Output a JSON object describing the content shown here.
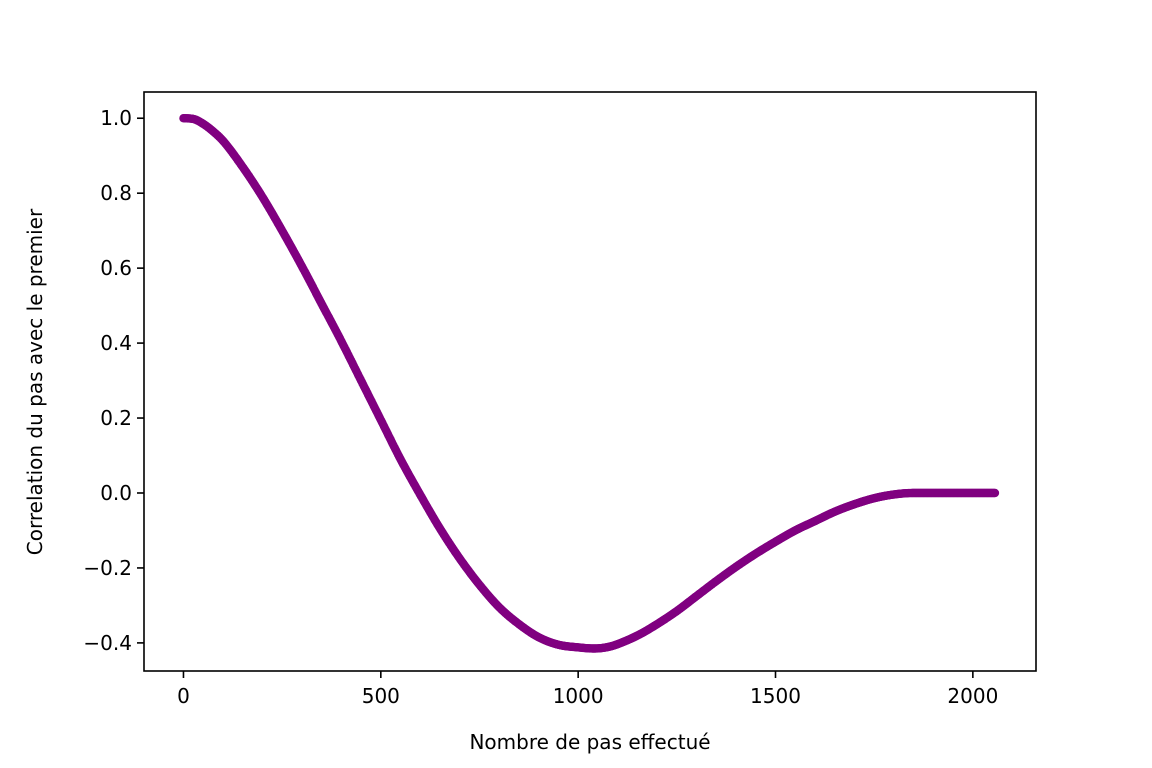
{
  "chart_data": {
    "type": "scatter",
    "title": "",
    "xlabel": "Nombre de pas effectué",
    "ylabel": "Correlation du pas avec le premier",
    "xlim": [
      -100,
      2160
    ],
    "ylim": [
      -0.475,
      1.07
    ],
    "x_ticks": [
      {
        "value": 0,
        "label": "0"
      },
      {
        "value": 500,
        "label": "500"
      },
      {
        "value": 1000,
        "label": "1000"
      },
      {
        "value": 1500,
        "label": "1500"
      },
      {
        "value": 2000,
        "label": "2000"
      }
    ],
    "y_ticks": [
      {
        "value": 1.0,
        "label": "1.0"
      },
      {
        "value": 0.8,
        "label": "0.8"
      },
      {
        "value": 0.6,
        "label": "0.6"
      },
      {
        "value": 0.4,
        "label": "0.4"
      },
      {
        "value": 0.2,
        "label": "0.2"
      },
      {
        "value": 0.0,
        "label": "0.0"
      },
      {
        "value": -0.2,
        "label": "−0.2"
      },
      {
        "value": -0.4,
        "label": "−0.4"
      }
    ],
    "color": "#800080",
    "grid": false,
    "series": [
      {
        "x": [
          0,
          25,
          50,
          75,
          100,
          150,
          200,
          250,
          300,
          350,
          400,
          450,
          500,
          550,
          600,
          650,
          700,
          750,
          800,
          850,
          900,
          950,
          1000,
          1040,
          1080,
          1120,
          1160,
          1200,
          1250,
          1300,
          1350,
          1400,
          1450,
          1500,
          1550,
          1600,
          1650,
          1700,
          1750,
          1800,
          1850,
          1900,
          1950,
          2000,
          2056
        ],
        "values": [
          1.0,
          0.998,
          0.985,
          0.965,
          0.94,
          0.87,
          0.79,
          0.7,
          0.605,
          0.505,
          0.405,
          0.3,
          0.195,
          0.09,
          -0.005,
          -0.095,
          -0.175,
          -0.245,
          -0.305,
          -0.35,
          -0.385,
          -0.405,
          -0.412,
          -0.415,
          -0.41,
          -0.395,
          -0.375,
          -0.35,
          -0.315,
          -0.275,
          -0.235,
          -0.197,
          -0.162,
          -0.13,
          -0.1,
          -0.075,
          -0.05,
          -0.03,
          -0.014,
          -0.004,
          0.0,
          0.0,
          0.0,
          0.0,
          0.0
        ]
      }
    ]
  }
}
